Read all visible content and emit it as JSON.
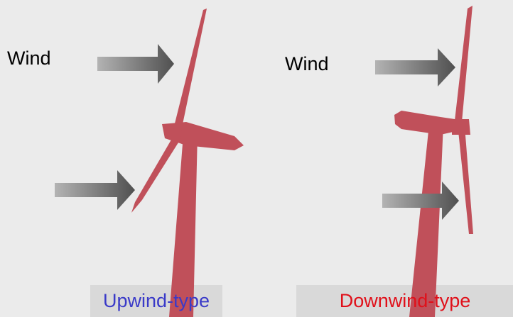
{
  "wind_labels": [
    "Wind",
    "Wind"
  ],
  "turbines": [
    {
      "label": "Upwind-type"
    },
    {
      "label": "Downwind-type"
    }
  ]
}
